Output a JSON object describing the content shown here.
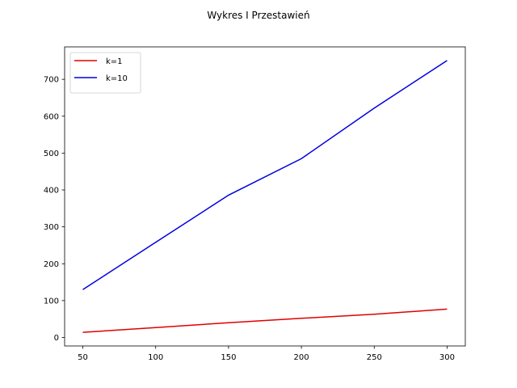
{
  "chart_data": {
    "type": "line",
    "title": "Wykres I Przestawień",
    "xlabel": "",
    "ylabel": "",
    "x": [
      50,
      100,
      150,
      200,
      250,
      300
    ],
    "series": [
      {
        "name": "k=1",
        "color": "#e00000",
        "values": [
          14,
          27,
          40,
          52,
          63,
          77
        ]
      },
      {
        "name": "k=10",
        "color": "#0000e0",
        "values": [
          130,
          258,
          386,
          485,
          622,
          751
        ]
      }
    ],
    "xlim": [
      37.5,
      312.5
    ],
    "ylim": [
      -23,
      788
    ],
    "xticks": [
      50,
      100,
      150,
      200,
      250,
      300
    ],
    "yticks": [
      0,
      100,
      200,
      300,
      400,
      500,
      600,
      700
    ],
    "grid": false,
    "legend": "top-left"
  }
}
